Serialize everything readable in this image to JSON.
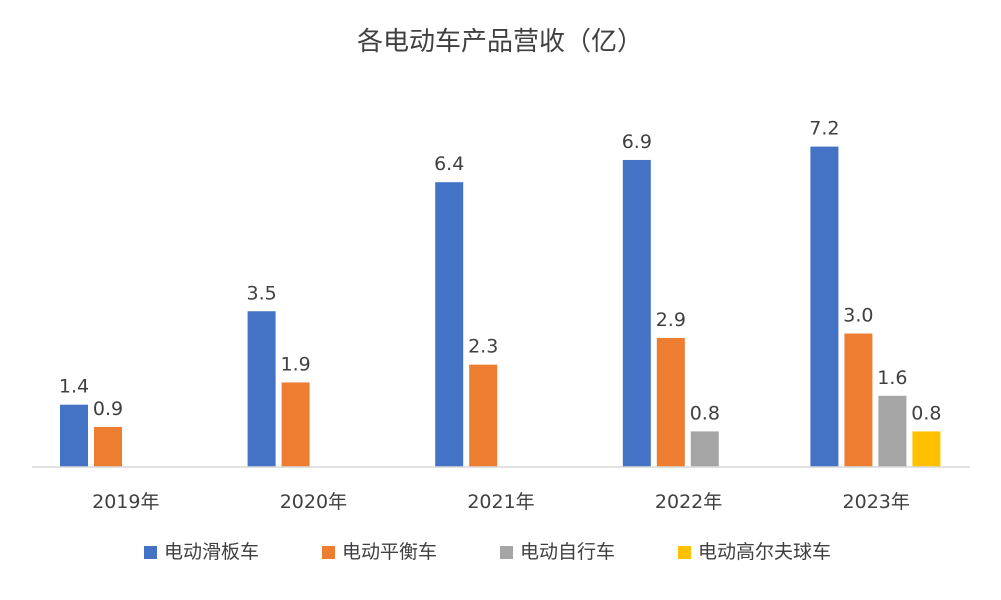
{
  "chart_data": {
    "type": "bar",
    "title": "各电动车产品营收（亿）",
    "categories": [
      "2019年",
      "2020年",
      "2021年",
      "2022年",
      "2023年"
    ],
    "series": [
      {
        "name": "电动滑板车",
        "color": "#4472C4",
        "values": [
          1.4,
          3.5,
          6.4,
          6.9,
          7.2
        ],
        "labels": [
          "1.4",
          "3.5",
          "6.4",
          "6.9",
          "7.2"
        ]
      },
      {
        "name": "电动平衡车",
        "color": "#ED7D31",
        "values": [
          0.9,
          1.9,
          2.3,
          2.9,
          3.0
        ],
        "labels": [
          "0.9",
          "1.9",
          "2.3",
          "2.9",
          "3.0"
        ]
      },
      {
        "name": "电动自行车",
        "color": "#A5A5A5",
        "values": [
          null,
          null,
          null,
          0.8,
          1.6
        ],
        "labels": [
          null,
          null,
          null,
          "0.8",
          "1.6"
        ]
      },
      {
        "name": "电动高尔夫球车",
        "color": "#FFC000",
        "values": [
          null,
          null,
          null,
          null,
          0.8
        ],
        "labels": [
          null,
          null,
          null,
          null,
          "0.8"
        ]
      }
    ],
    "xlabel": "",
    "ylabel": "",
    "ylim": [
      0,
      8
    ],
    "grid": false,
    "legend_position": "bottom"
  }
}
